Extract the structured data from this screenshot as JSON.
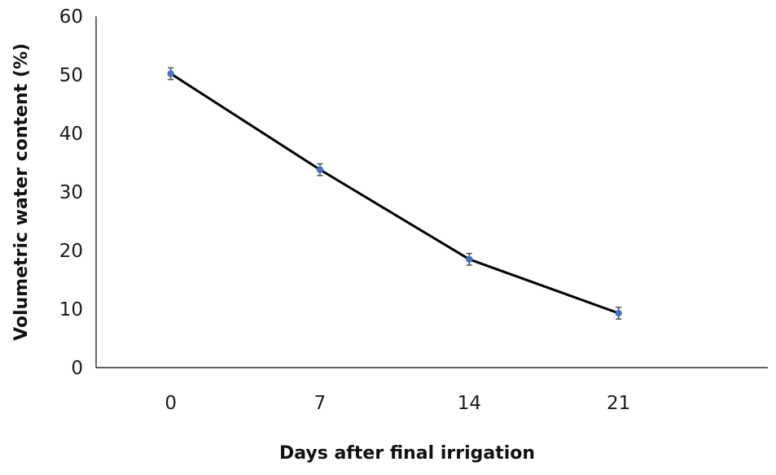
{
  "chart_data": {
    "type": "line",
    "title": "",
    "xlabel": "Days after final irrigation",
    "ylabel": "Volumetric water content (%)",
    "categories": [
      "0",
      "7",
      "14",
      "21"
    ],
    "x": [
      0,
      7,
      14,
      21
    ],
    "series": [
      {
        "values": [
          50.2,
          33.8,
          18.5,
          9.3
        ],
        "error": [
          1.0,
          1.0,
          1.0,
          1.0
        ],
        "marker_color": "#4472c4",
        "line_color": "#000000"
      }
    ],
    "ylim": [
      0,
      60
    ],
    "yticks": [
      "0",
      "10",
      "20",
      "30",
      "40",
      "50",
      "60"
    ],
    "grid": false,
    "legend": "none"
  }
}
